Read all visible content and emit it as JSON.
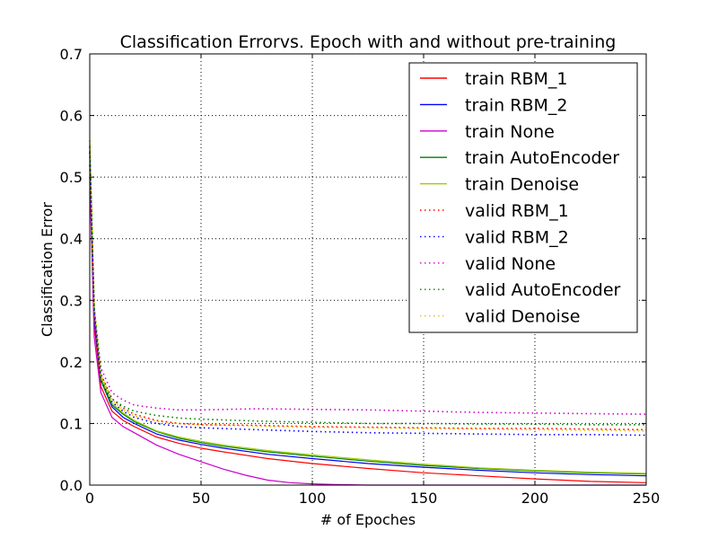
{
  "chart_data": {
    "type": "line",
    "title": "Classification Errorvs. Epoch with and without pre-training",
    "xlabel": "# of Epoches",
    "ylabel": "Classification Error",
    "xlim": [
      0,
      250
    ],
    "ylim": [
      0,
      0.7
    ],
    "xticks": [
      "0",
      "50",
      "100",
      "150",
      "200",
      "250"
    ],
    "yticks": [
      "0.0",
      "0.1",
      "0.2",
      "0.3",
      "0.4",
      "0.5",
      "0.6",
      "0.7"
    ],
    "grid": true,
    "legend_position": "top-right",
    "series": [
      {
        "name": "train RBM_1",
        "color": "#ff0000",
        "style": "solid",
        "x": [
          0,
          2,
          5,
          10,
          15,
          20,
          30,
          40,
          50,
          60,
          80,
          100,
          125,
          150,
          175,
          200,
          225,
          250
        ],
        "y": [
          0.52,
          0.26,
          0.16,
          0.12,
          0.105,
          0.095,
          0.078,
          0.068,
          0.06,
          0.054,
          0.043,
          0.035,
          0.027,
          0.02,
          0.015,
          0.01,
          0.006,
          0.004
        ]
      },
      {
        "name": "train RBM_2",
        "color": "#0000ff",
        "style": "solid",
        "x": [
          0,
          2,
          5,
          10,
          15,
          20,
          30,
          40,
          50,
          60,
          80,
          100,
          125,
          150,
          175,
          200,
          225,
          250
        ],
        "y": [
          0.54,
          0.27,
          0.17,
          0.127,
          0.11,
          0.1,
          0.083,
          0.073,
          0.066,
          0.06,
          0.05,
          0.043,
          0.035,
          0.029,
          0.024,
          0.02,
          0.017,
          0.015
        ]
      },
      {
        "name": "train None",
        "color": "#cc00cc",
        "style": "solid",
        "x": [
          0,
          2,
          5,
          10,
          15,
          20,
          30,
          40,
          50,
          60,
          70,
          80,
          90,
          100,
          110,
          125,
          150,
          175,
          200,
          225,
          250
        ],
        "y": [
          0.5,
          0.24,
          0.15,
          0.11,
          0.095,
          0.085,
          0.065,
          0.05,
          0.038,
          0.026,
          0.016,
          0.008,
          0.004,
          0.002,
          0.001,
          0,
          0,
          0,
          0,
          0,
          0
        ]
      },
      {
        "name": "train AutoEncoder",
        "color": "#008000",
        "style": "solid",
        "x": [
          0,
          2,
          5,
          10,
          15,
          20,
          30,
          40,
          50,
          60,
          80,
          100,
          125,
          150,
          175,
          200,
          225,
          250
        ],
        "y": [
          0.55,
          0.28,
          0.17,
          0.13,
          0.115,
          0.103,
          0.087,
          0.076,
          0.069,
          0.063,
          0.054,
          0.047,
          0.039,
          0.032,
          0.027,
          0.023,
          0.02,
          0.018
        ]
      },
      {
        "name": "train Denoise",
        "color": "#9acd00",
        "style": "solid",
        "x": [
          0,
          2,
          5,
          10,
          15,
          20,
          30,
          40,
          50,
          60,
          80,
          100,
          125,
          150,
          175,
          200,
          225,
          250
        ],
        "y": [
          0.56,
          0.285,
          0.175,
          0.133,
          0.117,
          0.105,
          0.088,
          0.078,
          0.071,
          0.065,
          0.056,
          0.049,
          0.041,
          0.034,
          0.028,
          0.024,
          0.021,
          0.019
        ]
      },
      {
        "name": "valid RBM_1",
        "color": "#ff0000",
        "style": "dotted",
        "x": [
          0,
          2,
          5,
          10,
          15,
          20,
          30,
          40,
          50,
          75,
          100,
          125,
          150,
          175,
          200,
          225,
          250
        ],
        "y": [
          0.52,
          0.28,
          0.18,
          0.14,
          0.125,
          0.115,
          0.105,
          0.1,
          0.098,
          0.097,
          0.095,
          0.094,
          0.093,
          0.092,
          0.092,
          0.091,
          0.09
        ]
      },
      {
        "name": "valid RBM_2",
        "color": "#0000ff",
        "style": "dotted",
        "x": [
          0,
          2,
          5,
          10,
          15,
          20,
          30,
          40,
          50,
          75,
          100,
          125,
          150,
          175,
          200,
          225,
          250
        ],
        "y": [
          0.54,
          0.28,
          0.17,
          0.135,
          0.12,
          0.11,
          0.1,
          0.095,
          0.093,
          0.09,
          0.087,
          0.085,
          0.084,
          0.083,
          0.082,
          0.082,
          0.081
        ]
      },
      {
        "name": "valid None",
        "color": "#cc00cc",
        "style": "dotted",
        "x": [
          0,
          2,
          5,
          10,
          15,
          20,
          30,
          40,
          50,
          75,
          100,
          125,
          150,
          175,
          200,
          225,
          250
        ],
        "y": [
          0.5,
          0.28,
          0.19,
          0.15,
          0.138,
          0.13,
          0.125,
          0.122,
          0.122,
          0.124,
          0.123,
          0.122,
          0.12,
          0.118,
          0.117,
          0.116,
          0.115
        ]
      },
      {
        "name": "valid AutoEncoder",
        "color": "#008000",
        "style": "dotted",
        "x": [
          0,
          2,
          5,
          10,
          15,
          20,
          30,
          40,
          50,
          75,
          100,
          125,
          150,
          175,
          200,
          225,
          250
        ],
        "y": [
          0.55,
          0.29,
          0.18,
          0.14,
          0.128,
          0.12,
          0.113,
          0.109,
          0.107,
          0.104,
          0.102,
          0.1,
          0.1,
          0.099,
          0.099,
          0.098,
          0.098
        ]
      },
      {
        "name": "valid Denoise",
        "color": "#e6c000",
        "style": "dotted",
        "x": [
          0,
          2,
          5,
          10,
          15,
          20,
          30,
          40,
          50,
          75,
          100,
          125,
          150,
          175,
          200,
          225,
          250
        ],
        "y": [
          0.56,
          0.29,
          0.18,
          0.138,
          0.122,
          0.112,
          0.104,
          0.1,
          0.098,
          0.096,
          0.094,
          0.093,
          0.092,
          0.091,
          0.09,
          0.089,
          0.088
        ]
      }
    ]
  }
}
